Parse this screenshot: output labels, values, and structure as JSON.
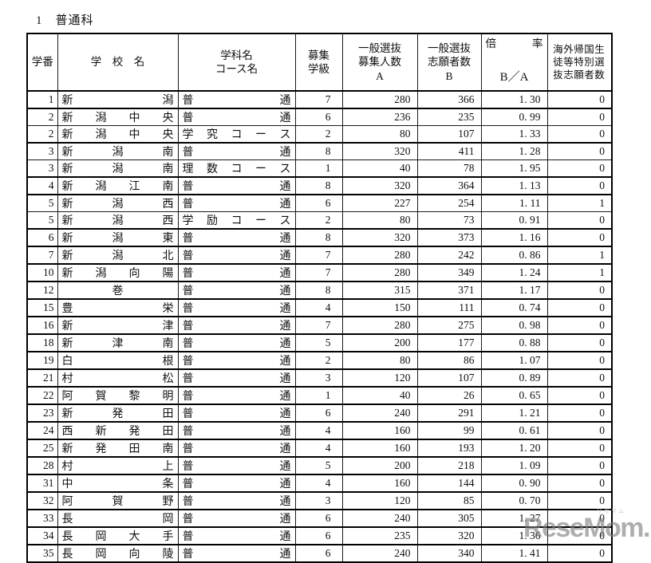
{
  "title": "1　普通科",
  "table_header": {
    "no": "学番",
    "school": "学　校　名",
    "course_line1": "学科名",
    "course_line2": "コース名",
    "classes_line1": "募集",
    "classes_line2": "学級",
    "a_line1": "一般選抜",
    "a_line2": "募集人数",
    "a_line3": "A",
    "b_line1": "一般選抜",
    "b_line2": "志願者数",
    "b_line3": "B",
    "ratio_left": "倍",
    "ratio_right": "率",
    "ratio_line2": "B／A",
    "overseas": "海外帰国生徒等特別選抜志願者数"
  },
  "rows": [
    {
      "no": "1",
      "school": "新潟",
      "course": "普通",
      "classes": "7",
      "a": "280",
      "b": "366",
      "ratio": "1. 30",
      "overseas": "0",
      "sub": false
    },
    {
      "no": "2",
      "school": "新潟中央",
      "course": "普通",
      "classes": "6",
      "a": "236",
      "b": "235",
      "ratio": "0. 99",
      "overseas": "0",
      "sub": false
    },
    {
      "no": "2",
      "school": "新潟中央",
      "course": "学究コース",
      "classes": "2",
      "a": "80",
      "b": "107",
      "ratio": "1. 33",
      "overseas": "0",
      "sub": true
    },
    {
      "no": "3",
      "school": "新潟南",
      "course": "普通",
      "classes": "8",
      "a": "320",
      "b": "411",
      "ratio": "1. 28",
      "overseas": "0",
      "sub": false
    },
    {
      "no": "3",
      "school": "新潟南",
      "course": "理数コース",
      "classes": "1",
      "a": "40",
      "b": "78",
      "ratio": "1. 95",
      "overseas": "0",
      "sub": true
    },
    {
      "no": "4",
      "school": "新潟江南",
      "course": "普通",
      "classes": "8",
      "a": "320",
      "b": "364",
      "ratio": "1. 13",
      "overseas": "0",
      "sub": false
    },
    {
      "no": "5",
      "school": "新潟西",
      "course": "普通",
      "classes": "6",
      "a": "227",
      "b": "254",
      "ratio": "1. 11",
      "overseas": "1",
      "sub": false
    },
    {
      "no": "5",
      "school": "新潟西",
      "course": "学励コース",
      "classes": "2",
      "a": "80",
      "b": "73",
      "ratio": "0. 91",
      "overseas": "0",
      "sub": true
    },
    {
      "no": "6",
      "school": "新潟東",
      "course": "普通",
      "classes": "8",
      "a": "320",
      "b": "373",
      "ratio": "1. 16",
      "overseas": "0",
      "sub": false
    },
    {
      "no": "7",
      "school": "新潟北",
      "course": "普通",
      "classes": "7",
      "a": "280",
      "b": "242",
      "ratio": "0. 86",
      "overseas": "1",
      "sub": false
    },
    {
      "no": "10",
      "school": "新潟向陽",
      "course": "普通",
      "classes": "7",
      "a": "280",
      "b": "349",
      "ratio": "1. 24",
      "overseas": "1",
      "sub": false
    },
    {
      "no": "12",
      "school": "巻",
      "course": "普通",
      "classes": "8",
      "a": "315",
      "b": "371",
      "ratio": "1. 17",
      "overseas": "0",
      "sub": false
    },
    {
      "no": "15",
      "school": "豊栄",
      "course": "普通",
      "classes": "4",
      "a": "150",
      "b": "111",
      "ratio": "0. 74",
      "overseas": "0",
      "sub": false
    },
    {
      "no": "16",
      "school": "新津",
      "course": "普通",
      "classes": "7",
      "a": "280",
      "b": "275",
      "ratio": "0. 98",
      "overseas": "0",
      "sub": false
    },
    {
      "no": "18",
      "school": "新津南",
      "course": "普通",
      "classes": "5",
      "a": "200",
      "b": "177",
      "ratio": "0. 88",
      "overseas": "0",
      "sub": false
    },
    {
      "no": "19",
      "school": "白根",
      "course": "普通",
      "classes": "2",
      "a": "80",
      "b": "86",
      "ratio": "1. 07",
      "overseas": "0",
      "sub": false
    },
    {
      "no": "21",
      "school": "村松",
      "course": "普通",
      "classes": "3",
      "a": "120",
      "b": "107",
      "ratio": "0. 89",
      "overseas": "0",
      "sub": false
    },
    {
      "no": "22",
      "school": "阿賀黎明",
      "course": "普通",
      "classes": "1",
      "a": "40",
      "b": "26",
      "ratio": "0. 65",
      "overseas": "0",
      "sub": false
    },
    {
      "no": "23",
      "school": "新発田",
      "course": "普通",
      "classes": "6",
      "a": "240",
      "b": "291",
      "ratio": "1. 21",
      "overseas": "0",
      "sub": false
    },
    {
      "no": "24",
      "school": "西新発田",
      "course": "普通",
      "classes": "4",
      "a": "160",
      "b": "99",
      "ratio": "0. 61",
      "overseas": "0",
      "sub": false
    },
    {
      "no": "25",
      "school": "新発田南",
      "course": "普通",
      "classes": "4",
      "a": "160",
      "b": "193",
      "ratio": "1. 20",
      "overseas": "0",
      "sub": false
    },
    {
      "no": "28",
      "school": "村上",
      "course": "普通",
      "classes": "5",
      "a": "200",
      "b": "218",
      "ratio": "1. 09",
      "overseas": "0",
      "sub": false
    },
    {
      "no": "31",
      "school": "中条",
      "course": "普通",
      "classes": "4",
      "a": "160",
      "b": "144",
      "ratio": "0. 90",
      "overseas": "0",
      "sub": false
    },
    {
      "no": "32",
      "school": "阿賀野",
      "course": "普通",
      "classes": "3",
      "a": "120",
      "b": "85",
      "ratio": "0. 70",
      "overseas": "0",
      "sub": false
    },
    {
      "no": "33",
      "school": "長岡",
      "course": "普通",
      "classes": "6",
      "a": "240",
      "b": "305",
      "ratio": "1. 27",
      "overseas": "0",
      "sub": false
    },
    {
      "no": "34",
      "school": "長岡大手",
      "course": "普通",
      "classes": "6",
      "a": "235",
      "b": "320",
      "ratio": "1. 36",
      "overseas": "0",
      "sub": false
    },
    {
      "no": "35",
      "school": "長岡向陵",
      "course": "普通",
      "classes": "6",
      "a": "240",
      "b": "340",
      "ratio": "1. 41",
      "overseas": "0",
      "sub": false
    }
  ],
  "watermark": {
    "logo": "ReseMom.",
    "kana": "リセマム"
  },
  "colors": {
    "border": "#000000",
    "sub_row_border": "#8a8a8a",
    "watermark_gray": "#7d7d7d",
    "watermark_kana_gray": "#c9c9c9",
    "background": "#ffffff",
    "text": "#111111"
  }
}
